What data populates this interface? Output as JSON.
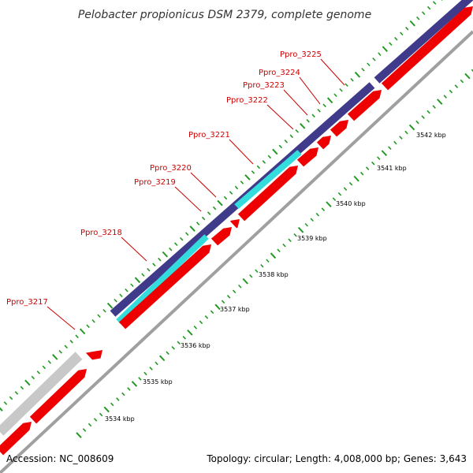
{
  "title": "Pelobacter propionicus DSM 2379, complete genome",
  "footer": {
    "accession": "Accession: NC_008609",
    "topology": "Topology: circular; Length: 4,008,000 bp; Genes: 3,643"
  },
  "colors": {
    "background": "#ffffff",
    "gene_label": "#cc0000",
    "forward_gene": "#3f3a8a",
    "reverse_gene": "#ee0000",
    "highlight_gene": "#33dddd",
    "pseudo_gene": "#c8c8c8",
    "backbone": "#a0a0a0",
    "tick_dots": "#229922"
  },
  "gene_labels": [
    {
      "name": "Ppro_3217"
    },
    {
      "name": "Ppro_3218"
    },
    {
      "name": "Ppro_3219"
    },
    {
      "name": "Ppro_3220"
    },
    {
      "name": "Ppro_3221"
    },
    {
      "name": "Ppro_3222"
    },
    {
      "name": "Ppro_3223"
    },
    {
      "name": "Ppro_3224"
    },
    {
      "name": "Ppro_3225"
    }
  ],
  "ticks": [
    {
      "label": "3534 kbp"
    },
    {
      "label": "3535 kbp"
    },
    {
      "label": "3536 kbp"
    },
    {
      "label": "3537 kbp"
    },
    {
      "label": "3538 kbp"
    },
    {
      "label": "3539 kbp"
    },
    {
      "label": "3540 kbp"
    },
    {
      "label": "3541 kbp"
    },
    {
      "label": "3542 kbp"
    }
  ]
}
